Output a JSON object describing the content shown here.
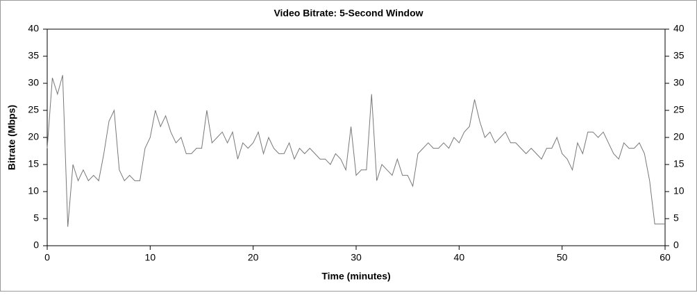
{
  "chart_data": {
    "type": "line",
    "title": "Video Bitrate: 5-Second Window",
    "x_label": "Time (minutes)",
    "y_label": "Bitrate (Mbps)",
    "x": [
      0,
      0.5,
      1,
      1.5,
      2,
      2.5,
      3,
      3.5,
      4,
      4.5,
      5,
      5.5,
      6,
      6.5,
      7,
      7.5,
      8,
      8.5,
      9,
      9.5,
      10,
      10.5,
      11,
      11.5,
      12,
      12.5,
      13,
      13.5,
      14,
      14.5,
      15,
      15.5,
      16,
      16.5,
      17,
      17.5,
      18,
      18.5,
      19,
      19.5,
      20,
      20.5,
      21,
      21.5,
      22,
      22.5,
      23,
      23.5,
      24,
      24.5,
      25,
      25.5,
      26,
      26.5,
      27,
      27.5,
      28,
      28.5,
      29,
      29.5,
      30,
      30.5,
      31,
      31.5,
      32,
      32.5,
      33,
      33.5,
      34,
      34.5,
      35,
      35.5,
      36,
      36.5,
      37,
      37.5,
      38,
      38.5,
      39,
      39.5,
      40,
      40.5,
      41,
      41.5,
      42,
      42.5,
      43,
      43.5,
      44,
      44.5,
      45,
      45.5,
      46,
      46.5,
      47,
      47.5,
      48,
      48.5,
      49,
      49.5,
      50,
      50.5,
      51,
      51.5,
      52,
      52.5,
      53,
      53.5,
      54,
      54.5,
      55,
      55.5,
      56,
      56.5,
      57,
      57.5,
      58,
      58.5,
      59,
      59.5,
      60
    ],
    "series": [
      {
        "name": "Video Bitrate",
        "color": "#777777",
        "values": [
          18,
          31,
          28,
          31.5,
          3.5,
          15,
          12,
          14,
          12,
          13,
          12,
          17,
          23,
          25,
          14,
          12,
          13,
          12,
          12,
          18,
          20,
          25,
          22,
          24,
          21,
          19,
          20,
          17,
          17,
          18,
          18,
          25,
          19,
          20,
          21,
          19,
          21,
          16,
          19,
          18,
          19,
          21,
          17,
          20,
          18,
          17,
          17,
          19,
          16,
          18,
          17,
          18,
          17,
          16,
          16,
          15,
          17,
          16,
          14,
          22,
          13,
          14,
          14,
          28,
          12,
          15,
          14,
          13,
          16,
          13,
          13,
          11,
          17,
          18,
          19,
          18,
          18,
          19,
          18,
          20,
          19,
          21,
          22,
          27,
          23,
          20,
          21,
          19,
          20,
          21,
          19,
          19,
          18,
          17,
          18,
          17,
          16,
          18,
          18,
          20,
          17,
          16,
          14,
          19,
          17,
          21,
          21,
          20,
          21,
          19,
          17,
          16,
          19,
          18,
          18,
          19,
          17,
          12,
          4,
          4,
          4
        ]
      }
    ],
    "xlim": [
      0,
      60
    ],
    "xticks": [
      0,
      10,
      20,
      30,
      40,
      50,
      60
    ],
    "ylim": [
      0,
      40
    ],
    "yticks": [
      0,
      5,
      10,
      15,
      20,
      25,
      30,
      35,
      40
    ],
    "y2lim": [
      0,
      40
    ],
    "y2ticks": [
      0,
      5,
      10,
      15,
      20,
      25,
      30,
      35,
      40
    ],
    "grid": false
  }
}
